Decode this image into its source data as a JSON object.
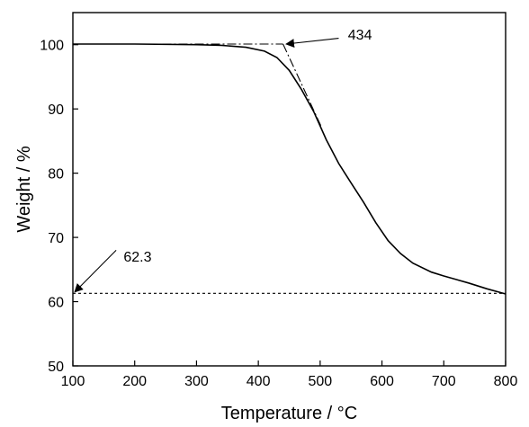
{
  "chart_data": {
    "type": "line",
    "xlabel": "Temperature / °C",
    "ylabel": "Weight / %",
    "xlim": [
      100,
      800
    ],
    "ylim": [
      50,
      105
    ],
    "xticks": [
      100,
      200,
      300,
      400,
      500,
      600,
      700,
      800
    ],
    "yticks": [
      50,
      60,
      70,
      80,
      90,
      100
    ],
    "grid": false,
    "series": [
      {
        "style": "solid",
        "x": [
          100,
          200,
          300,
          340,
          380,
          410,
          430,
          450,
          470,
          490,
          510,
          530,
          550,
          570,
          590,
          610,
          630,
          650,
          680,
          700,
          740,
          770,
          800
        ],
        "y": [
          100.1,
          100.1,
          100.0,
          99.9,
          99.6,
          99.0,
          98.0,
          96.0,
          93.0,
          89.5,
          85.2,
          81.5,
          78.5,
          75.5,
          72.3,
          69.5,
          67.5,
          66.0,
          64.6,
          64.0,
          62.9,
          62.0,
          61.2
        ]
      },
      {
        "style": "dash-dot",
        "x": [
          140,
          440
        ],
        "y": [
          100.1,
          100.1
        ]
      },
      {
        "style": "dash-dot",
        "x": [
          440,
          503
        ],
        "y": [
          100.1,
          87.0
        ]
      },
      {
        "style": "dotted",
        "x": [
          100,
          800
        ],
        "y": [
          61.3,
          61.3
        ]
      }
    ],
    "annotations": [
      {
        "text": "434",
        "text_x": 545,
        "text_y": 100.8,
        "arrow_from": [
          530,
          101.0
        ],
        "arrow_to": [
          445,
          100.1
        ]
      },
      {
        "text": "62.3",
        "text_x": 182,
        "text_y": 66.2,
        "arrow_from": [
          170,
          68.0
        ],
        "arrow_to": [
          103,
          61.5
        ]
      }
    ]
  }
}
